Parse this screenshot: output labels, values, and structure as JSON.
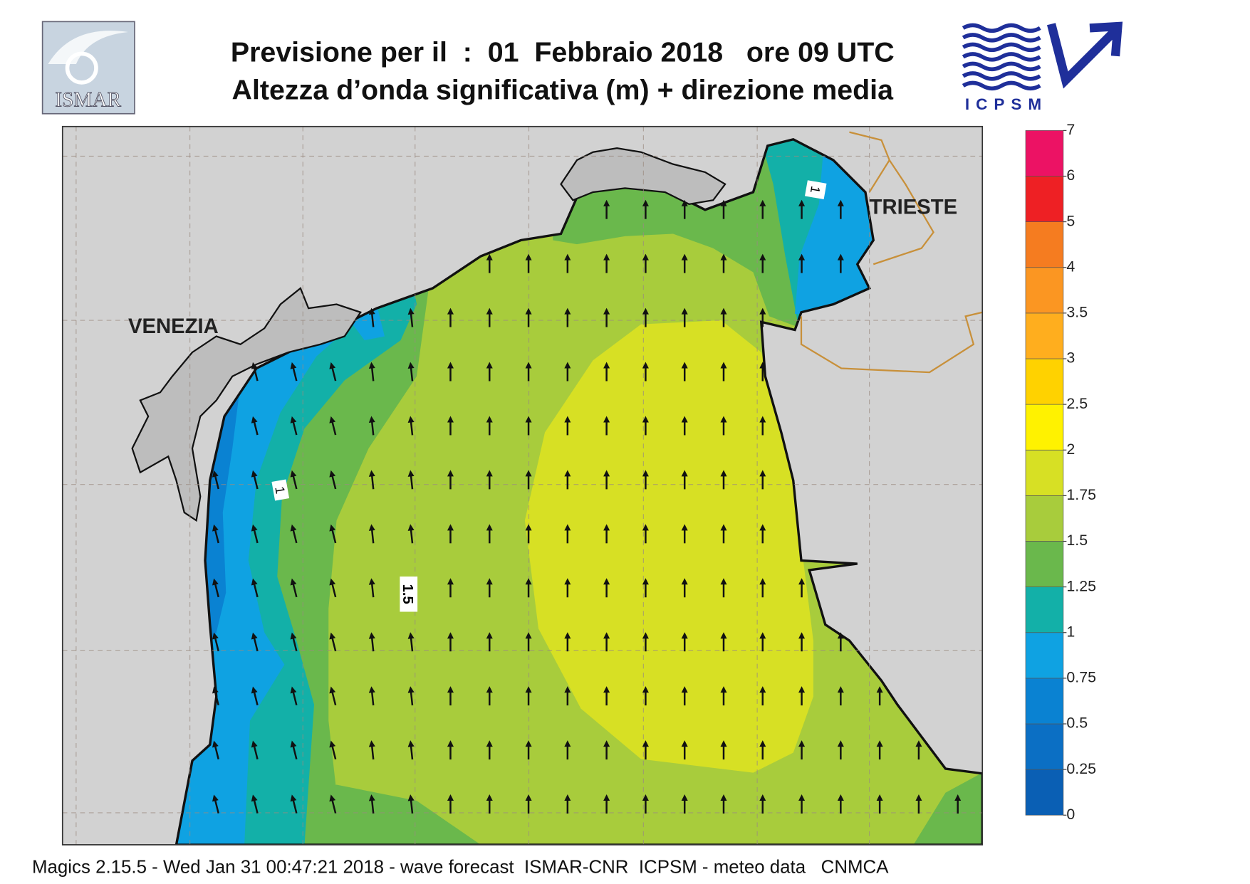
{
  "header": {
    "title_line1": "Previsione per il  :  01  Febbraio 2018   ore 09 UTC",
    "title_line2": "Altezza d’onda significativa (m) + direzione media",
    "logo_left": "ISMAR",
    "logo_right": "ICPSM"
  },
  "map": {
    "labels": [
      "VENEZIA",
      "TRIESTE"
    ],
    "contour_labels": [
      "1",
      "1.5",
      "1"
    ]
  },
  "colorbar": {
    "levels": [
      0,
      0.25,
      0.5,
      0.75,
      1,
      1.25,
      1.5,
      1.75,
      2,
      2.5,
      3,
      3.5,
      4,
      5,
      6,
      7
    ],
    "colors": [
      "#0a5fb4",
      "#0b6fc4",
      "#0a82d2",
      "#0fa2e2",
      "#13b0a8",
      "#6ab84c",
      "#a8cc3c",
      "#d7e024",
      "#fff200",
      "#ffd200",
      "#ffae1e",
      "#fb9622",
      "#f57c20",
      "#ee2024",
      "#ec1264"
    ]
  },
  "footer": "Magics 2.15.5 - Wed Jan 31 00:47:21 2018 - wave forecast  ISMAR-CNR  ICPSM - meteo data   CNMCA"
}
